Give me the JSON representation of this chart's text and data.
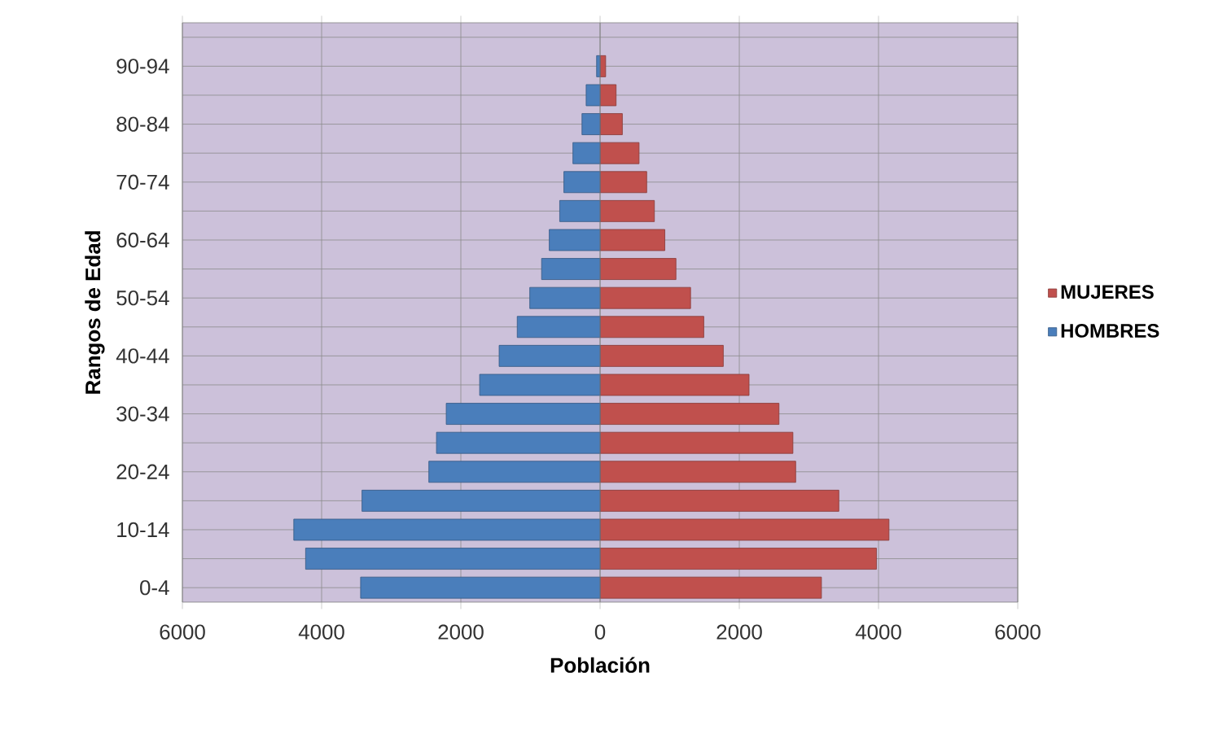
{
  "chart_data": {
    "type": "bar",
    "orientation": "horizontal",
    "stacked": true,
    "xlabel": "Población",
    "ylabel": "Rangos de Edad",
    "categories": [
      null,
      "90-94",
      null,
      "80-84",
      null,
      "70-74",
      null,
      "60-64",
      null,
      "50-54",
      null,
      "40-44",
      null,
      "30-34",
      null,
      "20-24",
      null,
      "10-14",
      null,
      "0-4"
    ],
    "series": [
      {
        "name": "MUJERES",
        "color": "#c0504d",
        "values": [
          null,
          80,
          230,
          320,
          560,
          670,
          780,
          930,
          1090,
          1300,
          1490,
          1770,
          2140,
          2570,
          2770,
          2810,
          3430,
          4150,
          3970,
          3180
        ]
      },
      {
        "name": "HOMBRES",
        "color": "#4a7ebb",
        "values": [
          null,
          -50,
          -200,
          -260,
          -390,
          -520,
          -580,
          -730,
          -840,
          -1010,
          -1190,
          -1450,
          -1730,
          -2210,
          -2350,
          -2460,
          -3420,
          -4400,
          -4230,
          -3440
        ]
      }
    ],
    "xlim": [
      -6000,
      6000
    ],
    "xticks": [
      {
        "value": -6000,
        "label": "6000"
      },
      {
        "value": -4000,
        "label": "4000"
      },
      {
        "value": -2000,
        "label": "2000"
      },
      0,
      2000,
      4000,
      6000
    ],
    "grid": true,
    "legend": "right"
  }
}
